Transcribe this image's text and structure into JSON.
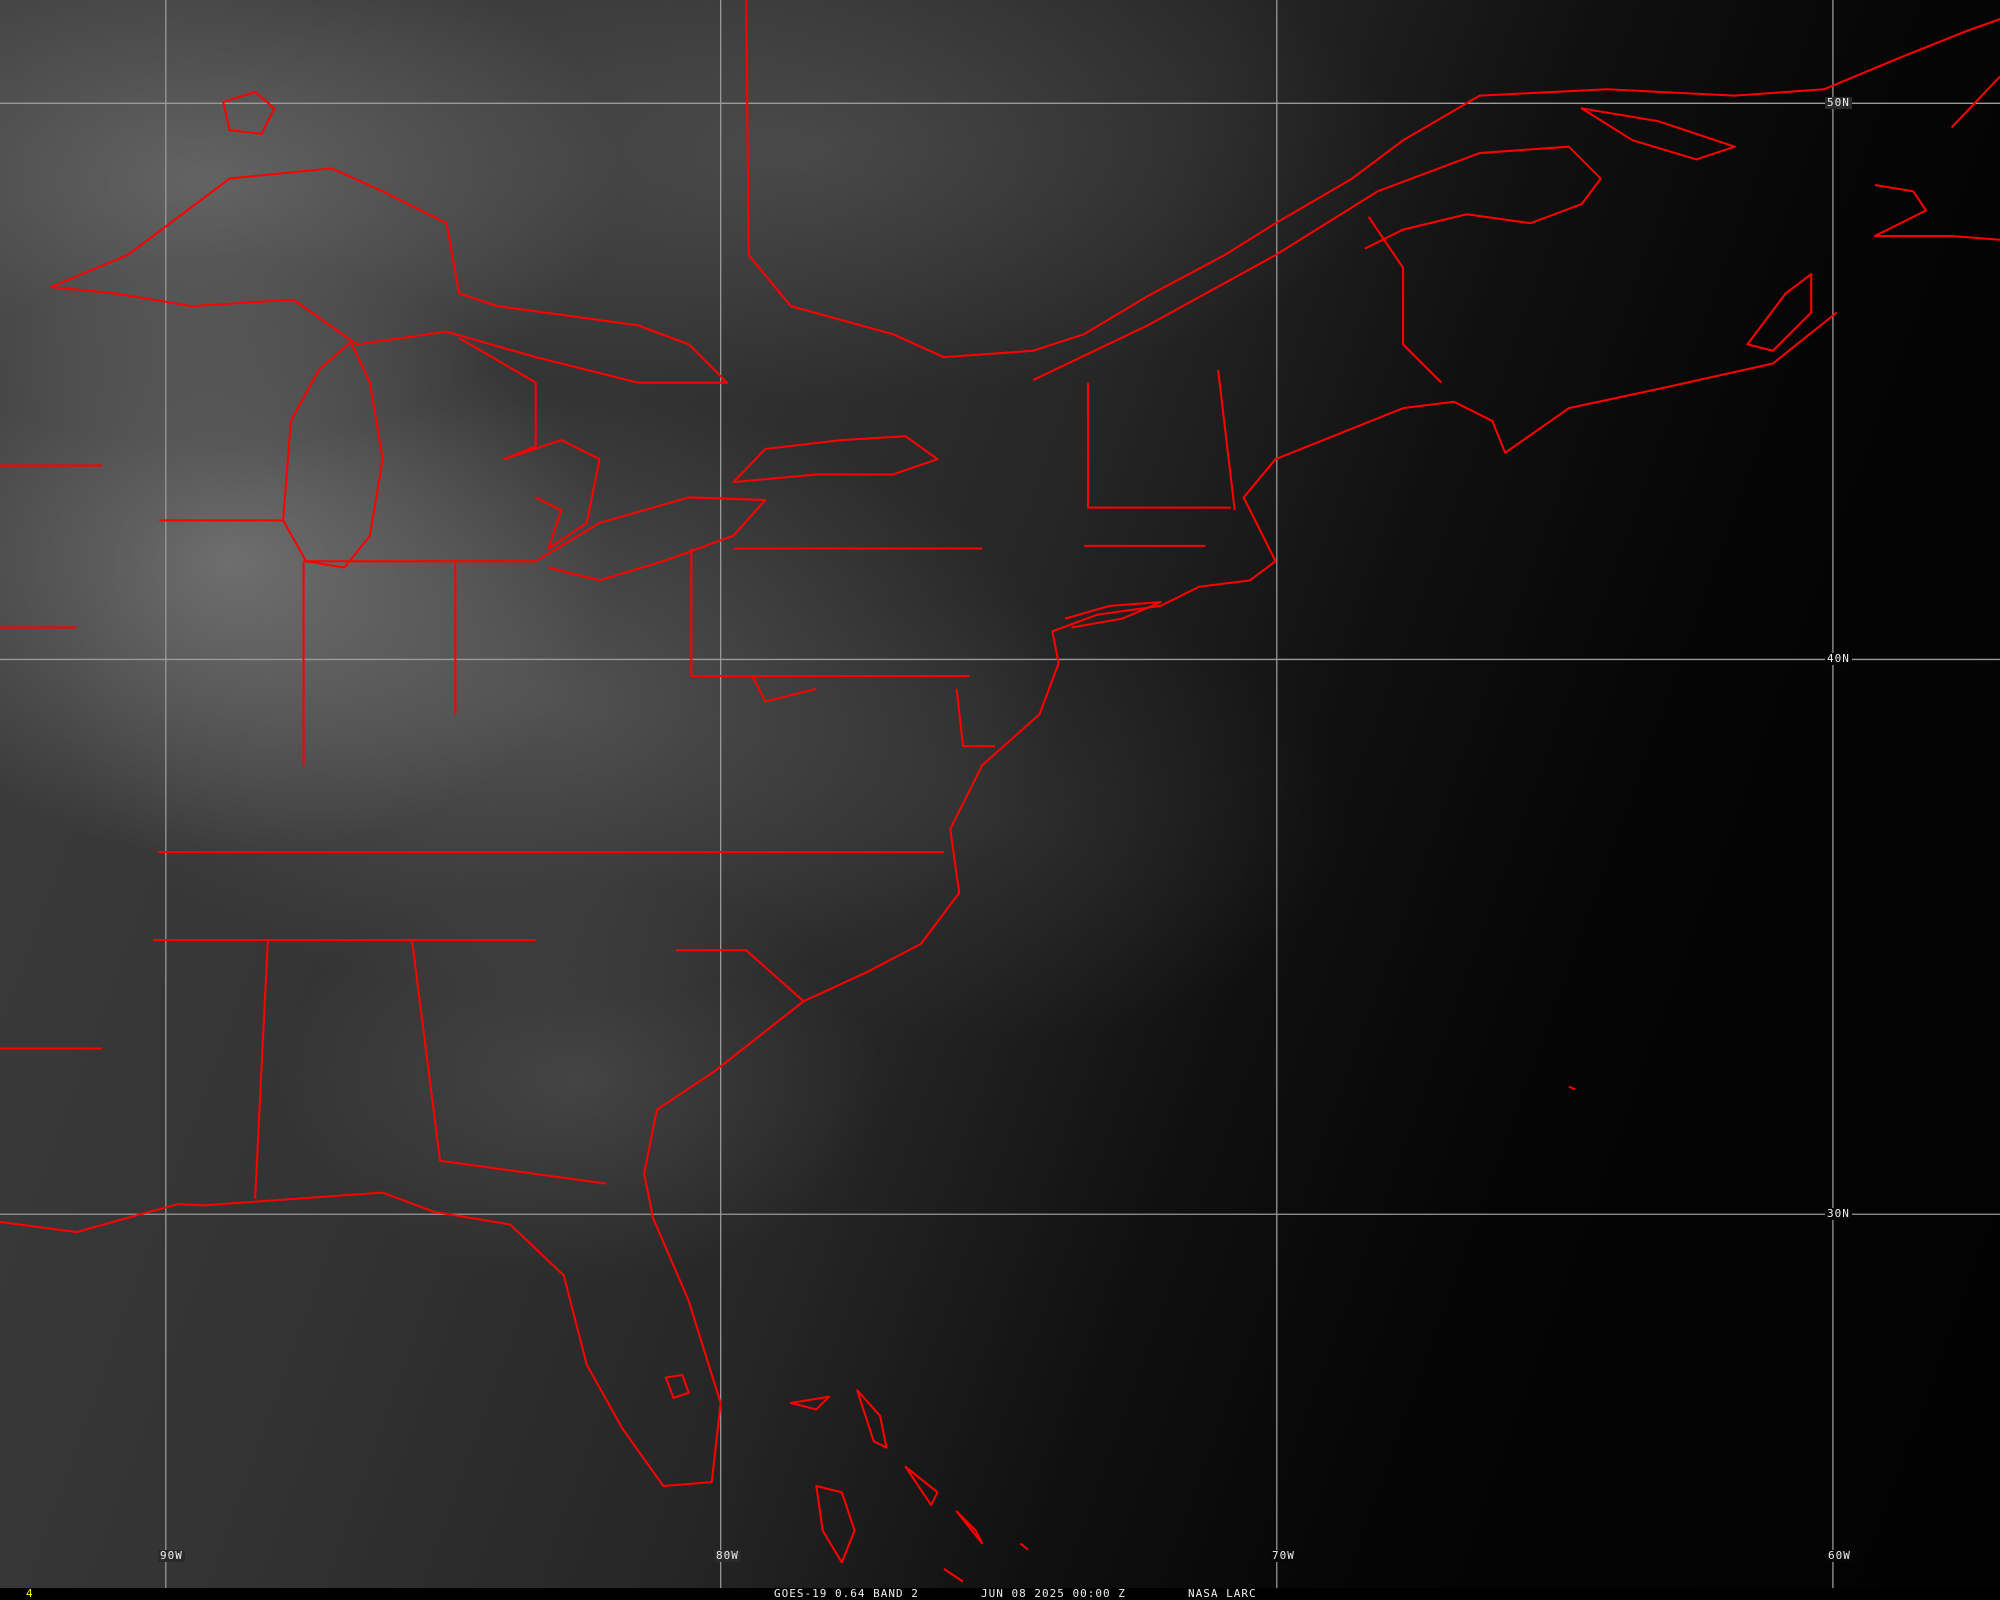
{
  "caption": {
    "frame_number": "4",
    "satellite_band": "GOES-19 0.64 BAND 2",
    "datetime": "JUN 08 2025 00:00 Z",
    "credit": "NASA LARC"
  },
  "grid": {
    "longitudes": [
      "90W",
      "80W",
      "70W",
      "60W"
    ],
    "latitudes": [
      "50N",
      "40N",
      "30N"
    ]
  },
  "colors": {
    "borders": "#ff0000",
    "gridlines": "#9a9a9a",
    "labels": "#f0f0f0",
    "frame_number": "#ffff00"
  }
}
